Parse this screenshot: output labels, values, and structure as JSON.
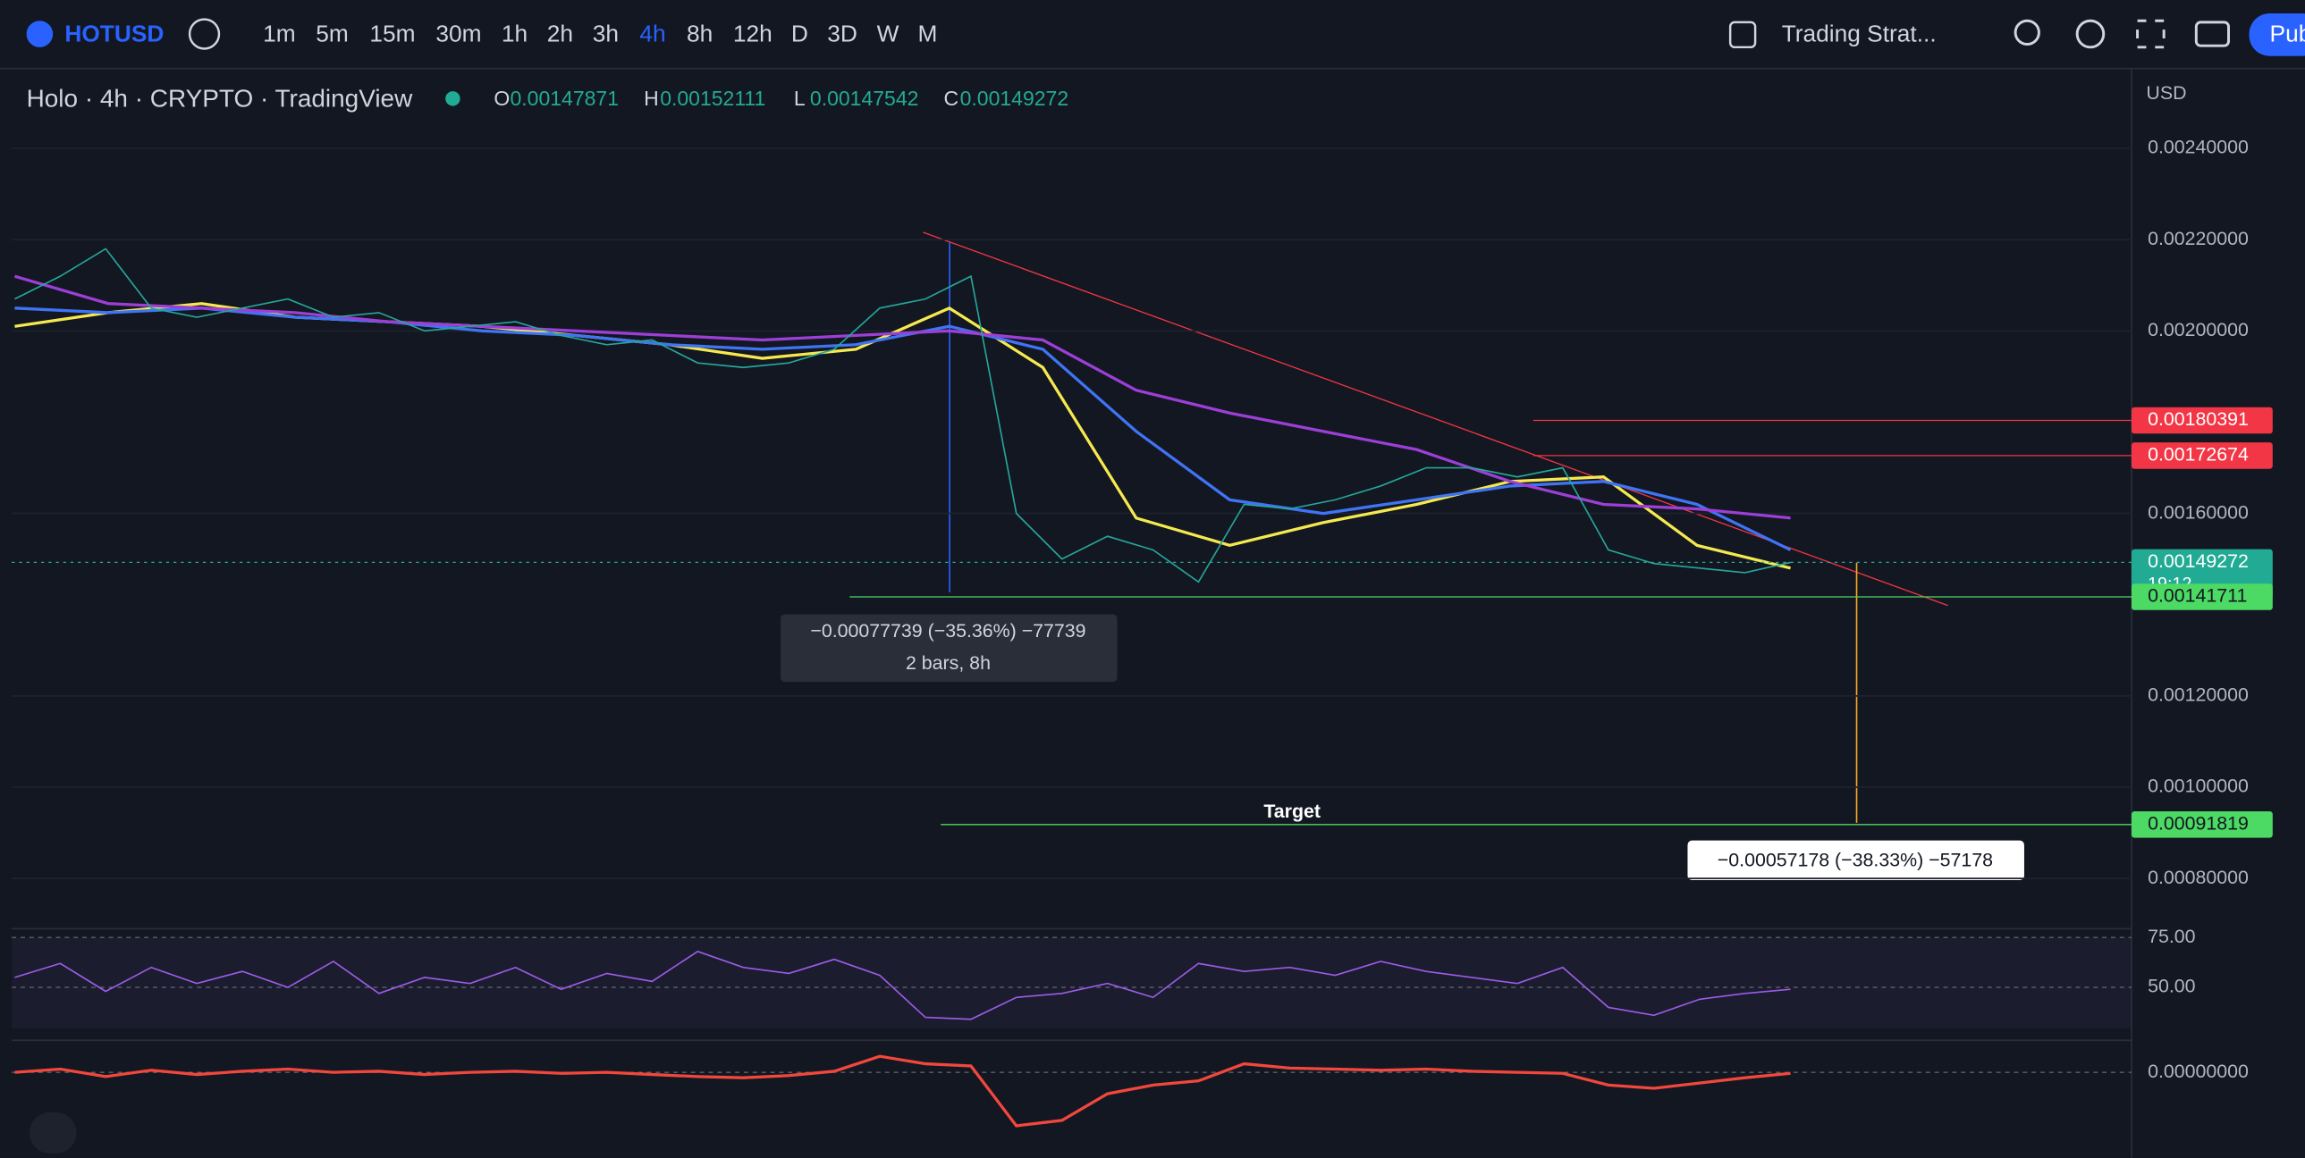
{
  "toolbar": {
    "symbol": "HOTUSD",
    "timeframes": [
      "1m",
      "5m",
      "15m",
      "30m",
      "1h",
      "2h",
      "3h",
      "4h",
      "8h",
      "12h",
      "D",
      "3D",
      "W",
      "M"
    ],
    "layout_name": "Trading Strat...",
    "publish": "Pub"
  },
  "chart_data": {
    "type": "line",
    "title": "Holo · 4h · CRYPTO · TradingView",
    "ohlc": [
      {
        "label": "O",
        "value": "0.00147871"
      },
      {
        "label": "H",
        "value": "0.00152111"
      },
      {
        "label": "L",
        "value": "0.00147542"
      },
      {
        "label": "C",
        "value": "0.00149272"
      }
    ],
    "currency": "USD",
    "ylim": [
      0.00069,
      0.00258
    ],
    "yticks": [
      {
        "value": 0.0024,
        "label": "0.00240000"
      },
      {
        "value": 0.0022,
        "label": "0.00220000"
      },
      {
        "value": 0.002,
        "label": "0.00200000"
      },
      {
        "value": 0.0016,
        "label": "0.00160000"
      },
      {
        "value": 0.0012,
        "label": "0.00120000"
      },
      {
        "value": 0.001,
        "label": "0.00100000"
      },
      {
        "value": 0.0008,
        "label": "0.00080000"
      }
    ],
    "grid": true,
    "close": {
      "color": "#26a69a",
      "values": [
        0.00207,
        0.00212,
        0.00218,
        0.00205,
        0.00203,
        0.00205,
        0.00207,
        0.00203,
        0.00204,
        0.002,
        0.00201,
        0.00202,
        0.00199,
        0.00197,
        0.00198,
        0.00193,
        0.00192,
        0.00193,
        0.00196,
        0.00205,
        0.00207,
        0.00212,
        0.0016,
        0.0015,
        0.00155,
        0.00152,
        0.00145,
        0.00162,
        0.00161,
        0.00163,
        0.00166,
        0.0017,
        0.0017,
        0.00168,
        0.0017,
        0.00152,
        0.00149,
        0.00148,
        0.00147,
        0.00149272
      ]
    },
    "moving_averages": [
      {
        "color": "#f5e94f",
        "values": [
          0.00201,
          0.00204,
          0.00206,
          0.00203,
          0.00202,
          0.00201,
          0.00199,
          0.00197,
          0.00194,
          0.00196,
          0.00205,
          0.00192,
          0.00159,
          0.00153,
          0.00158,
          0.00162,
          0.00167,
          0.00168,
          0.00153,
          0.00148
        ]
      },
      {
        "color": "#3f74f5",
        "values": [
          0.00205,
          0.00204,
          0.00205,
          0.00203,
          0.00202,
          0.002,
          0.00199,
          0.00197,
          0.00196,
          0.00197,
          0.00201,
          0.00196,
          0.00178,
          0.00163,
          0.0016,
          0.00163,
          0.00166,
          0.00167,
          0.00162,
          0.00152
        ]
      },
      {
        "color": "#9c3fd6",
        "values": [
          0.00212,
          0.00206,
          0.00205,
          0.00204,
          0.00202,
          0.00201,
          0.002,
          0.00199,
          0.00198,
          0.00199,
          0.002,
          0.00198,
          0.00187,
          0.00182,
          0.00178,
          0.00174,
          0.00167,
          0.00162,
          0.00161,
          0.00159
        ]
      }
    ],
    "price_tags": [
      {
        "value": 0.00180391,
        "label": "0.00180391",
        "color": "#f23645"
      },
      {
        "value": 0.00172674,
        "label": "0.00172674",
        "color": "#f23645"
      },
      {
        "value": 0.00149272,
        "label": "0.00149272",
        "color": "#22ab94",
        "countdown": "19:12"
      },
      {
        "value": 0.00141711,
        "label": "0.00141711",
        "color": "#4cd964"
      },
      {
        "value": 0.00091819,
        "label": "0.00091819",
        "color": "#4cd964"
      }
    ],
    "annotations": {
      "measure_1": [
        "−0.00077739 (−35.36%) −77739",
        "2 bars, 8h"
      ],
      "measure_2": "−0.00057178 (−38.33%) −57178",
      "target": "Target"
    },
    "rsi": {
      "ylim": [
        23.5,
        79.4
      ],
      "yticks": [
        {
          "value": 75,
          "label": "75.00"
        },
        {
          "value": 50,
          "label": "50.00"
        }
      ],
      "color": "#9c5ce8",
      "values": [
        55,
        62,
        48,
        60,
        52,
        58,
        50,
        63,
        47,
        55,
        52,
        60,
        49,
        57,
        53,
        68,
        60,
        57,
        64,
        56,
        35,
        34,
        45,
        47,
        52,
        45,
        62,
        58,
        60,
        56,
        63,
        58,
        55,
        52,
        60,
        40,
        36,
        44,
        47,
        49
      ]
    },
    "macd": {
      "ylim": [
        -8e-05,
        3e-05
      ],
      "yticks": [
        {
          "value": 0,
          "label": "0.00000000"
        }
      ],
      "color": "#f2473c",
      "values": [
        0,
        3e-06,
        -4e-06,
        2e-06,
        -2e-06,
        1e-06,
        3e-06,
        0,
        1e-06,
        -2e-06,
        0,
        1e-06,
        -1e-06,
        0,
        -2e-06,
        -4e-06,
        -5e-06,
        -3e-06,
        1e-06,
        1.5e-05,
        8e-06,
        6e-06,
        -5e-05,
        -4.5e-05,
        -2e-05,
        -1.2e-05,
        -8e-06,
        8e-06,
        4e-06,
        3e-06,
        2e-06,
        3e-06,
        1e-06,
        0,
        -1e-06,
        -1.2e-05,
        -1.5e-05,
        -1e-05,
        -5e-06,
        -1e-06
      ]
    }
  }
}
